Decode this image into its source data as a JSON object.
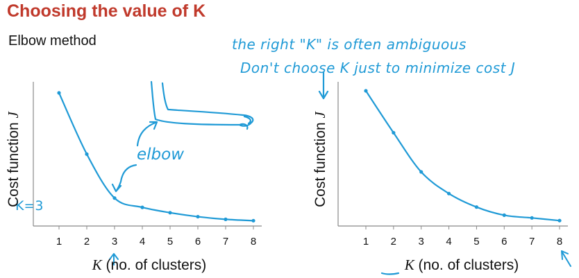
{
  "title": "Choosing the value of K",
  "subtitle": "Elbow method",
  "annotations": {
    "note_line1": "the right \"K\" is often ambiguous",
    "note_line2": "Don't choose K just to minimize cost J",
    "elbow_label": "elbow",
    "k_label": "K=3"
  },
  "colors": {
    "title": "#c0392b",
    "ink": "#1f9ad6",
    "text": "#111111",
    "axis": "#888888"
  },
  "chart_data": [
    {
      "type": "line",
      "x": [
        1,
        2,
        3,
        4,
        5,
        6,
        7,
        8
      ],
      "series": [
        {
          "values": [
            100,
            54,
            21,
            14,
            10,
            7,
            5,
            4
          ]
        }
      ],
      "xlabel_var": "K",
      "xlabel_rest": " (no. of clusters)",
      "ylabel_main": "Cost function ",
      "ylabel_var": "J",
      "xlim": [
        0,
        8.2
      ],
      "ylim": [
        0,
        100
      ],
      "grid": false
    },
    {
      "type": "line",
      "x": [
        1,
        2,
        3,
        4,
        5,
        6,
        7,
        8
      ],
      "series": [
        {
          "values": [
            100,
            69,
            40,
            24,
            14,
            8,
            6,
            4
          ]
        }
      ],
      "xlabel_var": "K",
      "xlabel_rest": " (no. of clusters)",
      "ylabel_main": "Cost function ",
      "ylabel_var": "J",
      "xlim": [
        0,
        8.2
      ],
      "ylim": [
        0,
        100
      ],
      "grid": false
    }
  ]
}
